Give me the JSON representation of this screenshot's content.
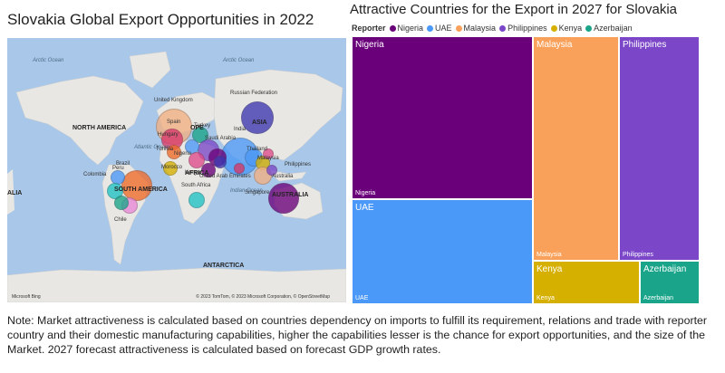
{
  "left_panel": {
    "title": "Slovakia Global Export Opportunities in 2022",
    "map_labels": {
      "arctic_left": "Arctic Ocean",
      "arctic_right": "Arctic Ocean",
      "north_america": "NORTH AMERICA",
      "south_america": "SOUTH AMERICA",
      "europe": "OPE",
      "africa": "AFRICA",
      "asia": "ASIA",
      "australia": "AUSTRALIA",
      "antarctica": "ANTARCTICA",
      "atlantic": "Atlantic Ocean",
      "indian": "Indian Ocean",
      "alia": "ALIA",
      "united_kingdom": "United Kingdom",
      "russian_federation": "Russian Federation",
      "spain": "Spain",
      "hungary": "Hungary",
      "turkey": "Turkey",
      "saudi_arabia": "Saudi Arabia",
      "india": "India",
      "thailand": "Thailand",
      "malaysia": "Malaysia",
      "philippines": "Philippines",
      "tunisia": "Tunisia",
      "nigeria": "Nigeria",
      "morocco": "Morocco",
      "kenya": "Kenya",
      "uae": "United Arab Emirates",
      "singapore": "Singapore",
      "australia_country": "Australia",
      "south_africa": "South Africa",
      "colombia": "Colombia",
      "peru": "Peru",
      "brazil": "Brazil",
      "chile": "Chile"
    },
    "attribution": "© 2023 TomTom, © 2023 Microsoft Corporation, © OpenStreetMap",
    "logo": "Microsoft Bing"
  },
  "chart_data": {
    "type": "treemap",
    "title": "Attractive Countries for the Export in 2027 for Slovakia",
    "legend_title": "Reporter",
    "series": [
      {
        "name": "Nigeria",
        "color": "#6b007b"
      },
      {
        "name": "UAE",
        "color": "#4a98f7"
      },
      {
        "name": "Malaysia",
        "color": "#f9a15a"
      },
      {
        "name": "Philippines",
        "color": "#7b47c8"
      },
      {
        "name": "Kenya",
        "color": "#d6b000"
      },
      {
        "name": "Azerbaijan",
        "color": "#1aa58a"
      }
    ]
  },
  "note": "Note: Market attractiveness is calculated based on countries dependency on imports to fulfill its requirement, relations and trade with reporter country and their domestic manufacturing capabilities, higher the capabilities lesser is the chance for export opportunities, and the size of the Market. 2027 forecast attractiveness is calculated based on forecast GDP growth rates."
}
